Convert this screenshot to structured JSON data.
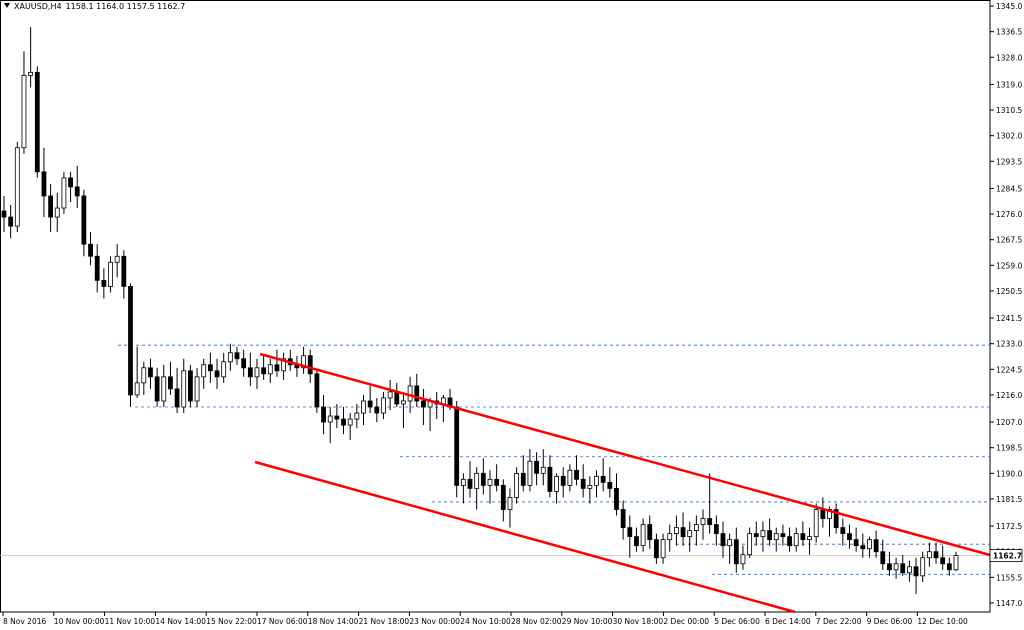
{
  "header": {
    "symbol": "XAUUSD,H4",
    "ohlc": "1158.1 1164.0 1157.5 1162.7"
  },
  "chart_data": {
    "type": "candlestick",
    "symbol": "XAUUSD",
    "timeframe": "H4",
    "current_price": 1162.7,
    "ylim": [
      1144.0,
      1347.0
    ],
    "y_ticks": [
      1345.0,
      1336.5,
      1328.0,
      1319.0,
      1310.5,
      1302.0,
      1293.5,
      1284.5,
      1276.0,
      1267.5,
      1259.0,
      1250.5,
      1241.5,
      1233.0,
      1224.5,
      1216.0,
      1207.0,
      1198.5,
      1190.0,
      1181.5,
      1172.5,
      1164.0,
      1155.5,
      1147.0
    ],
    "x_labels": [
      "8 Nov 2016",
      "10 Nov 00:00",
      "11 Nov 10:00",
      "14 Nov 14:00",
      "15 Nov 22:00",
      "17 Nov 06:00",
      "18 Nov 14:00",
      "21 Nov 18:00",
      "23 Nov 00:00",
      "24 Nov 10:00",
      "28 Nov 02:00",
      "29 Nov 10:00",
      "30 Nov 18:00",
      "2 Dec 00:00",
      "5 Dec 06:00",
      "6 Dec 14:00",
      "7 Dec 22:00",
      "9 Dec 06:00",
      "12 Dec 10:00"
    ],
    "candles": [
      [
        1277,
        1282,
        1270,
        1275
      ],
      [
        1275,
        1279,
        1268,
        1272
      ],
      [
        1272,
        1300,
        1270,
        1298
      ],
      [
        1298,
        1330,
        1296,
        1322
      ],
      [
        1322,
        1338,
        1318,
        1323
      ],
      [
        1323,
        1325,
        1288,
        1290
      ],
      [
        1290,
        1298,
        1275,
        1282
      ],
      [
        1282,
        1286,
        1270,
        1275
      ],
      [
        1275,
        1283,
        1270,
        1278
      ],
      [
        1278,
        1290,
        1276,
        1288
      ],
      [
        1288,
        1290,
        1280,
        1285
      ],
      [
        1285,
        1292,
        1278,
        1282
      ],
      [
        1282,
        1284,
        1262,
        1266
      ],
      [
        1266,
        1270,
        1259,
        1262
      ],
      [
        1262,
        1266,
        1250,
        1254
      ],
      [
        1254,
        1258,
        1248,
        1252
      ],
      [
        1252,
        1262,
        1250,
        1260
      ],
      [
        1260,
        1266,
        1255,
        1262
      ],
      [
        1262,
        1264,
        1248,
        1252
      ],
      [
        1252,
        1253,
        1212,
        1216
      ],
      [
        1216,
        1232,
        1215,
        1220
      ],
      [
        1220,
        1227,
        1216,
        1225
      ],
      [
        1225,
        1228,
        1218,
        1222
      ],
      [
        1222,
        1225,
        1212,
        1214
      ],
      [
        1214,
        1226,
        1212,
        1222
      ],
      [
        1222,
        1227,
        1216,
        1218
      ],
      [
        1218,
        1225,
        1210,
        1212
      ],
      [
        1212,
        1228,
        1210,
        1224
      ],
      [
        1224,
        1226,
        1212,
        1214
      ],
      [
        1214,
        1225,
        1212,
        1222
      ],
      [
        1222,
        1228,
        1218,
        1226
      ],
      [
        1226,
        1230,
        1220,
        1224
      ],
      [
        1224,
        1228,
        1218,
        1222
      ],
      [
        1222,
        1230,
        1220,
        1227
      ],
      [
        1227,
        1233,
        1224,
        1230
      ],
      [
        1230,
        1232,
        1226,
        1228
      ],
      [
        1228,
        1231,
        1222,
        1225
      ],
      [
        1225,
        1230,
        1219,
        1222
      ],
      [
        1222,
        1228,
        1218,
        1225
      ],
      [
        1225,
        1229,
        1221,
        1223
      ],
      [
        1223,
        1228,
        1220,
        1226
      ],
      [
        1226,
        1231,
        1222,
        1224
      ],
      [
        1224,
        1230,
        1221,
        1228
      ],
      [
        1228,
        1231,
        1224,
        1226
      ],
      [
        1226,
        1229,
        1222,
        1225
      ],
      [
        1225,
        1232,
        1223,
        1229
      ],
      [
        1229,
        1231,
        1220,
        1223
      ],
      [
        1223,
        1224,
        1210,
        1212
      ],
      [
        1212,
        1216,
        1203,
        1207
      ],
      [
        1207,
        1212,
        1200,
        1209
      ],
      [
        1209,
        1213,
        1205,
        1208
      ],
      [
        1208,
        1212,
        1203,
        1206
      ],
      [
        1206,
        1210,
        1201,
        1208
      ],
      [
        1208,
        1213,
        1205,
        1210
      ],
      [
        1210,
        1216,
        1206,
        1214
      ],
      [
        1214,
        1219,
        1210,
        1212
      ],
      [
        1212,
        1215,
        1207,
        1210
      ],
      [
        1210,
        1217,
        1208,
        1215
      ],
      [
        1215,
        1221,
        1211,
        1217
      ],
      [
        1217,
        1220,
        1212,
        1213
      ],
      [
        1213,
        1216,
        1205,
        1214
      ],
      [
        1214,
        1222,
        1210,
        1219
      ],
      [
        1219,
        1223,
        1212,
        1214
      ],
      [
        1214,
        1218,
        1206,
        1212
      ],
      [
        1212,
        1215,
        1204,
        1214
      ],
      [
        1214,
        1217,
        1208,
        1213
      ],
      [
        1213,
        1216,
        1207,
        1215
      ],
      [
        1215,
        1218,
        1211,
        1212
      ],
      [
        1212,
        1214,
        1182,
        1186
      ],
      [
        1186,
        1190,
        1180,
        1188
      ],
      [
        1188,
        1194,
        1182,
        1185
      ],
      [
        1185,
        1192,
        1178,
        1190
      ],
      [
        1190,
        1195,
        1183,
        1186
      ],
      [
        1186,
        1191,
        1180,
        1188
      ],
      [
        1188,
        1193,
        1184,
        1186
      ],
      [
        1186,
        1188,
        1174,
        1178
      ],
      [
        1178,
        1185,
        1172,
        1182
      ],
      [
        1182,
        1192,
        1180,
        1190
      ],
      [
        1190,
        1196,
        1184,
        1186
      ],
      [
        1186,
        1198,
        1184,
        1194
      ],
      [
        1194,
        1197,
        1186,
        1190
      ],
      [
        1190,
        1198,
        1186,
        1192
      ],
      [
        1192,
        1196,
        1182,
        1184
      ],
      [
        1184,
        1190,
        1180,
        1189
      ],
      [
        1189,
        1192,
        1182,
        1186
      ],
      [
        1186,
        1193,
        1184,
        1191
      ],
      [
        1191,
        1196,
        1186,
        1188
      ],
      [
        1188,
        1193,
        1182,
        1185
      ],
      [
        1185,
        1189,
        1180,
        1186
      ],
      [
        1186,
        1191,
        1182,
        1189
      ],
      [
        1189,
        1195,
        1184,
        1187
      ],
      [
        1187,
        1192,
        1182,
        1185
      ],
      [
        1185,
        1190,
        1176,
        1178
      ],
      [
        1178,
        1181,
        1168,
        1172
      ],
      [
        1172,
        1176,
        1162,
        1169
      ],
      [
        1169,
        1172,
        1164,
        1166
      ],
      [
        1166,
        1175,
        1164,
        1173
      ],
      [
        1173,
        1176,
        1165,
        1168
      ],
      [
        1168,
        1170,
        1160,
        1162
      ],
      [
        1162,
        1170,
        1160,
        1168
      ],
      [
        1168,
        1173,
        1164,
        1170
      ],
      [
        1170,
        1176,
        1166,
        1172
      ],
      [
        1172,
        1177,
        1166,
        1169
      ],
      [
        1169,
        1174,
        1164,
        1171
      ],
      [
        1171,
        1176,
        1166,
        1173
      ],
      [
        1173,
        1178,
        1168,
        1175
      ],
      [
        1175,
        1190,
        1170,
        1173
      ],
      [
        1173,
        1176,
        1166,
        1170
      ],
      [
        1170,
        1174,
        1162,
        1166
      ],
      [
        1166,
        1170,
        1160,
        1168
      ],
      [
        1168,
        1172,
        1157,
        1160
      ],
      [
        1160,
        1166,
        1158,
        1163
      ],
      [
        1163,
        1172,
        1162,
        1170
      ],
      [
        1170,
        1174,
        1166,
        1169
      ],
      [
        1169,
        1174,
        1164,
        1171
      ],
      [
        1171,
        1175,
        1166,
        1168
      ],
      [
        1168,
        1172,
        1164,
        1170
      ],
      [
        1170,
        1173,
        1166,
        1169
      ],
      [
        1169,
        1172,
        1164,
        1166
      ],
      [
        1166,
        1172,
        1164,
        1170
      ],
      [
        1170,
        1174,
        1166,
        1168
      ],
      [
        1168,
        1172,
        1163,
        1169
      ],
      [
        1169,
        1180,
        1167,
        1178
      ],
      [
        1178,
        1182,
        1172,
        1175
      ],
      [
        1175,
        1179,
        1169,
        1178
      ],
      [
        1178,
        1180,
        1170,
        1172
      ],
      [
        1172,
        1175,
        1166,
        1170
      ],
      [
        1170,
        1173,
        1165,
        1168
      ],
      [
        1168,
        1172,
        1164,
        1166
      ],
      [
        1166,
        1170,
        1162,
        1165
      ],
      [
        1165,
        1169,
        1162,
        1168
      ],
      [
        1168,
        1171,
        1162,
        1164
      ],
      [
        1164,
        1168,
        1158,
        1160
      ],
      [
        1160,
        1164,
        1156,
        1158
      ],
      [
        1158,
        1162,
        1155,
        1160
      ],
      [
        1160,
        1163,
        1156,
        1157
      ],
      [
        1157,
        1161,
        1154,
        1159
      ],
      [
        1159,
        1162,
        1150,
        1156
      ],
      [
        1156,
        1164,
        1154,
        1162
      ],
      [
        1162,
        1167,
        1159,
        1164
      ],
      [
        1164,
        1167,
        1160,
        1162
      ],
      [
        1162,
        1166,
        1158,
        1160
      ],
      [
        1160,
        1162,
        1156,
        1158
      ],
      [
        1158,
        1164,
        1157.5,
        1162.7
      ]
    ],
    "lines": {
      "upper_trend": {
        "color": "#ff0000"
      },
      "lower_trend": {
        "color": "#ff0000"
      },
      "levels": [
        1232.5,
        1212.0,
        1195.5,
        1180.5,
        1166.5,
        1156.5
      ]
    },
    "colors": {
      "bull_body": "#ffffff",
      "bear_body": "#000000",
      "level_lines": "#1e6fd9",
      "price_line": "#c0c0c0"
    },
    "grid": false
  }
}
